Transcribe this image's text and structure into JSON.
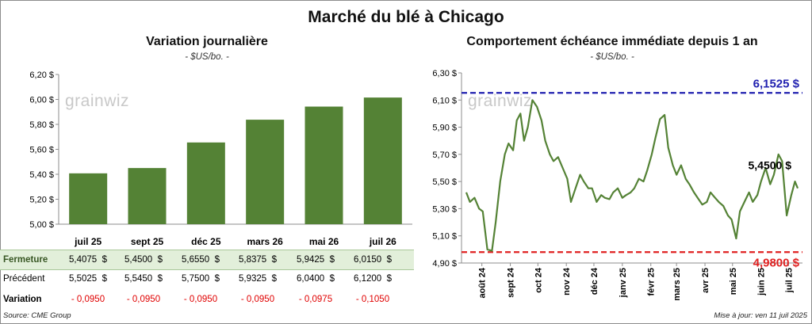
{
  "title": "Marché du blé à Chicago",
  "watermark": "grainwiz",
  "source": "Source: CME Group",
  "updated": "Mise à jour: ven 11 juil 2025",
  "left": {
    "title": "Variation journalière",
    "unit": "- $US/bo. -",
    "color_bar": "#548235",
    "chart_data": {
      "type": "bar",
      "categories": [
        "juil 25",
        "sept 25",
        "déc 25",
        "mars 26",
        "mai 26",
        "juil 26"
      ],
      "values": [
        5.4075,
        5.45,
        5.655,
        5.8375,
        5.9425,
        6.015
      ],
      "ylim": [
        5.0,
        6.2
      ],
      "yticks": [
        "5,00 $",
        "5,20 $",
        "5,40 $",
        "5,60 $",
        "5,80 $",
        "6,00 $",
        "6,20 $"
      ]
    },
    "table": {
      "rows": [
        {
          "label": "Fermeture",
          "values": [
            "5,4075  $",
            "5,4500  $",
            "5,6550  $",
            "5,8375  $",
            "5,9425  $",
            "6,0150  $"
          ]
        },
        {
          "label": "Précédent",
          "values": [
            "5,5025  $",
            "5,5450  $",
            "5,7500  $",
            "5,9325  $",
            "6,0400  $",
            "6,1200  $"
          ]
        },
        {
          "label": "Variation",
          "values": [
            "- 0,0950",
            "- 0,0950",
            "- 0,0950",
            "- 0,0950",
            "- 0,0975",
            "- 0,1050"
          ]
        }
      ]
    }
  },
  "right": {
    "title": "Comportement échéance immédiate depuis 1 an",
    "unit": "- $US/bo. -",
    "chart_data": {
      "type": "line",
      "ylim": [
        4.9,
        6.3
      ],
      "yticks": [
        "4,90 $",
        "5,10 $",
        "5,30 $",
        "5,50 $",
        "5,70 $",
        "5,90 $",
        "6,10 $",
        "6,30 $"
      ],
      "xticks": [
        "août 24",
        "sept 24",
        "oct 24",
        "nov 24",
        "déc 24",
        "janv 25",
        "févr 25",
        "mars 25",
        "avr 25",
        "mai 25",
        "juin 25",
        "juil 25"
      ],
      "x": [
        "2024-07-15",
        "2024-07-19",
        "2024-07-24",
        "2024-07-29",
        "2024-08-02",
        "2024-08-07",
        "2024-08-12",
        "2024-08-16",
        "2024-08-21",
        "2024-08-26",
        "2024-08-30",
        "2024-09-04",
        "2024-09-08",
        "2024-09-12",
        "2024-09-16",
        "2024-09-20",
        "2024-09-25",
        "2024-09-30",
        "2024-10-05",
        "2024-10-09",
        "2024-10-14",
        "2024-10-18",
        "2024-10-23",
        "2024-10-28",
        "2024-11-02",
        "2024-11-06",
        "2024-11-11",
        "2024-11-16",
        "2024-11-20",
        "2024-11-25",
        "2024-11-29",
        "2024-12-04",
        "2024-12-09",
        "2024-12-13",
        "2024-12-18",
        "2024-12-22",
        "2024-12-27",
        "2025-01-01",
        "2025-01-05",
        "2025-01-10",
        "2025-01-14",
        "2025-01-19",
        "2025-01-24",
        "2025-01-28",
        "2025-02-02",
        "2025-02-06",
        "2025-02-11",
        "2025-02-16",
        "2025-02-20",
        "2025-02-25",
        "2025-03-01",
        "2025-03-06",
        "2025-03-11",
        "2025-03-15",
        "2025-03-20",
        "2025-03-24",
        "2025-03-29",
        "2025-04-03",
        "2025-04-07",
        "2025-04-12",
        "2025-04-16",
        "2025-04-21",
        "2025-04-26",
        "2025-04-30",
        "2025-05-05",
        "2025-05-09",
        "2025-05-14",
        "2025-05-19",
        "2025-05-23",
        "2025-05-28",
        "2025-06-01",
        "2025-06-06",
        "2025-06-11",
        "2025-06-15",
        "2025-06-20",
        "2025-06-24",
        "2025-06-29",
        "2025-07-04",
        "2025-07-08",
        "2025-07-11"
      ],
      "series": [
        {
          "values": [
            5.42,
            5.35,
            5.38,
            5.3,
            5.28,
            5.0,
            4.99,
            5.2,
            5.5,
            5.7,
            5.78,
            5.73,
            5.95,
            6.0,
            5.8,
            5.9,
            6.1,
            6.05,
            5.95,
            5.8,
            5.7,
            5.65,
            5.68,
            5.6,
            5.52,
            5.35,
            5.45,
            5.55,
            5.5,
            5.45,
            5.45,
            5.35,
            5.4,
            5.38,
            5.37,
            5.42,
            5.45,
            5.38,
            5.4,
            5.42,
            5.45,
            5.52,
            5.5,
            5.58,
            5.7,
            5.82,
            5.96,
            5.99,
            5.75,
            5.62,
            5.55,
            5.62,
            5.52,
            5.48,
            5.42,
            5.38,
            5.33,
            5.35,
            5.42,
            5.38,
            5.35,
            5.32,
            5.25,
            5.22,
            5.08,
            5.28,
            5.35,
            5.42,
            5.35,
            5.4,
            5.5,
            5.6,
            5.48,
            5.55,
            5.7,
            5.65,
            5.25,
            5.4,
            5.5,
            5.45
          ]
        }
      ],
      "reflines": [
        {
          "label": "6,1525 $",
          "value": 6.1525,
          "color": "#2222b0"
        },
        {
          "label": "4,9800 $",
          "value": 4.98,
          "color": "#e02020"
        }
      ],
      "last_label": "5,4500 $",
      "line_color": "#548235"
    }
  }
}
